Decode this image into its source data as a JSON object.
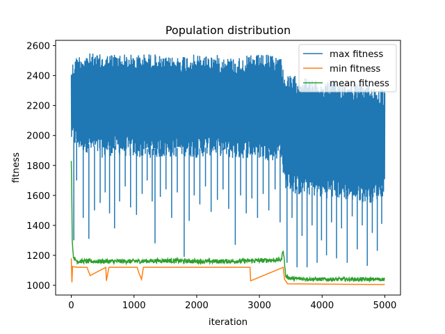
{
  "chart_data": {
    "type": "line",
    "title": "Population distribution",
    "xlabel": "iteration",
    "ylabel": "fitness",
    "xlim": [
      -250,
      5250
    ],
    "ylim": [
      935,
      2635
    ],
    "xticks": [
      0,
      1000,
      2000,
      3000,
      4000,
      5000
    ],
    "yticks": [
      1000,
      1200,
      1400,
      1600,
      1800,
      2000,
      2200,
      2400,
      2600
    ],
    "grid": false,
    "legend_position": "top-right",
    "series": [
      {
        "name": "max fitness",
        "color": "#1f77b4",
        "x": [
          0,
          100,
          300,
          500,
          700,
          1000,
          1300,
          1500,
          1800,
          2000,
          2300,
          2600,
          2900,
          3200,
          3350,
          3400,
          3600,
          3800,
          4000,
          4200,
          4500,
          4800,
          5000
        ],
        "y_center": [
          2100,
          2130,
          2150,
          2140,
          2130,
          2130,
          2120,
          2140,
          2120,
          2130,
          2140,
          2130,
          2130,
          2120,
          2130,
          2000,
          2000,
          1990,
          1980,
          1980,
          1990,
          1970,
          2000
        ],
        "y_band_high": [
          2480,
          2540,
          2550,
          2540,
          2550,
          2540,
          2550,
          2520,
          2540,
          2540,
          2540,
          2520,
          2540,
          2540,
          2530,
          2400,
          2400,
          2380,
          2350,
          2370,
          2350,
          2340,
          2300
        ],
        "y_band_low": [
          1950,
          1900,
          1880,
          1850,
          1870,
          1850,
          1850,
          1850,
          1860,
          1850,
          1870,
          1840,
          1850,
          1830,
          1850,
          1650,
          1600,
          1600,
          1580,
          1580,
          1560,
          1550,
          1600
        ],
        "spike_lows": [
          {
            "x": 40,
            "y": 1300
          },
          {
            "x": 85,
            "y": 1700
          },
          {
            "x": 190,
            "y": 1450
          },
          {
            "x": 280,
            "y": 1310
          },
          {
            "x": 370,
            "y": 1500
          },
          {
            "x": 460,
            "y": 1550
          },
          {
            "x": 540,
            "y": 1620
          },
          {
            "x": 610,
            "y": 1480
          },
          {
            "x": 690,
            "y": 1380
          },
          {
            "x": 770,
            "y": 1560
          },
          {
            "x": 860,
            "y": 1660
          },
          {
            "x": 945,
            "y": 1520
          },
          {
            "x": 1040,
            "y": 1470
          },
          {
            "x": 1130,
            "y": 1610
          },
          {
            "x": 1210,
            "y": 1700
          },
          {
            "x": 1290,
            "y": 1560
          },
          {
            "x": 1335,
            "y": 1280
          },
          {
            "x": 1420,
            "y": 1590
          },
          {
            "x": 1510,
            "y": 1640
          },
          {
            "x": 1600,
            "y": 1450
          },
          {
            "x": 1690,
            "y": 1620
          },
          {
            "x": 1800,
            "y": 1190
          },
          {
            "x": 1880,
            "y": 1430
          },
          {
            "x": 1960,
            "y": 1600
          },
          {
            "x": 2050,
            "y": 1540
          },
          {
            "x": 2140,
            "y": 1660
          },
          {
            "x": 2230,
            "y": 1490
          },
          {
            "x": 2330,
            "y": 1570
          },
          {
            "x": 2420,
            "y": 1640
          },
          {
            "x": 2510,
            "y": 1510
          },
          {
            "x": 2615,
            "y": 1270
          },
          {
            "x": 2700,
            "y": 1600
          },
          {
            "x": 2790,
            "y": 1480
          },
          {
            "x": 2880,
            "y": 1580
          },
          {
            "x": 2970,
            "y": 1450
          },
          {
            "x": 3060,
            "y": 1610
          },
          {
            "x": 3150,
            "y": 1500
          },
          {
            "x": 3250,
            "y": 1640
          },
          {
            "x": 3330,
            "y": 1420
          },
          {
            "x": 3440,
            "y": 1150
          },
          {
            "x": 3520,
            "y": 1450
          },
          {
            "x": 3600,
            "y": 1120
          },
          {
            "x": 3680,
            "y": 1330
          },
          {
            "x": 3760,
            "y": 1120
          },
          {
            "x": 3840,
            "y": 1400
          },
          {
            "x": 3920,
            "y": 1150
          },
          {
            "x": 3990,
            "y": 1300
          },
          {
            "x": 4070,
            "y": 1200
          },
          {
            "x": 4150,
            "y": 1420
          },
          {
            "x": 4230,
            "y": 1180
          },
          {
            "x": 4310,
            "y": 1380
          },
          {
            "x": 4400,
            "y": 1150
          },
          {
            "x": 4480,
            "y": 1460
          },
          {
            "x": 4560,
            "y": 1240
          },
          {
            "x": 4640,
            "y": 1400
          },
          {
            "x": 4720,
            "y": 1130
          },
          {
            "x": 4800,
            "y": 1350
          },
          {
            "x": 4880,
            "y": 1230
          },
          {
            "x": 4950,
            "y": 1410
          }
        ]
      },
      {
        "name": "min fitness",
        "color": "#ff7f0e",
        "x": [
          0,
          10,
          20,
          100,
          250,
          300,
          550,
          560,
          600,
          1050,
          1080,
          1120,
          1150,
          2850,
          2860,
          3380,
          3400,
          3450,
          5000
        ],
        "y": [
          1180,
          1020,
          1125,
          1120,
          1120,
          1065,
          1120,
          1030,
          1120,
          1120,
          1080,
          1040,
          1120,
          1120,
          1030,
          1120,
          1040,
          1010,
          1005
        ]
      },
      {
        "name": "mean fitness",
        "color": "#2ca02c",
        "x": [
          0,
          8,
          15,
          30,
          60,
          100,
          500,
          1000,
          1500,
          2000,
          2500,
          3000,
          3350,
          3380,
          3420,
          3500,
          4000,
          4500,
          5000
        ],
        "y": [
          1830,
          1600,
          1300,
          1200,
          1170,
          1160,
          1160,
          1160,
          1165,
          1160,
          1160,
          1165,
          1170,
          1240,
          1060,
          1045,
          1040,
          1040,
          1040
        ],
        "noise_amplitude_before_3400": 30,
        "noise_amplitude_after_3400": 25
      }
    ]
  }
}
